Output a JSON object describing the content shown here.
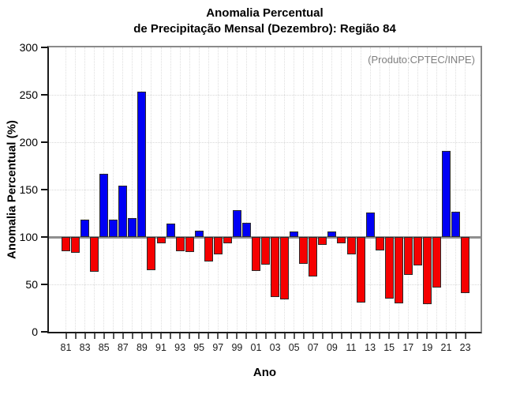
{
  "title": {
    "line1": "Anomalia Percentual",
    "line2": "de Precipitação Mensal (Dezembro): Região 84"
  },
  "watermark": "(Produto:CPTEC/INPE)",
  "axis": {
    "ylabel": "Anomalia Percentual (%)",
    "xlabel": "Ano"
  },
  "chart_data": {
    "type": "bar",
    "title": "Anomalia Percentual de Precipitação Mensal (Dezembro): Região 84",
    "xlabel": "Ano",
    "ylabel": "Anomalia Percentual (%)",
    "ylim": [
      0,
      300
    ],
    "yticks": [
      0,
      50,
      100,
      150,
      200,
      250,
      300
    ],
    "baseline": 100,
    "grid": "dotted",
    "legend": "none",
    "annotation": "(Produto:CPTEC/INPE)",
    "years": [
      1981,
      1982,
      1983,
      1984,
      1985,
      1986,
      1987,
      1988,
      1989,
      1990,
      1991,
      1992,
      1993,
      1994,
      1995,
      1996,
      1997,
      1998,
      1999,
      2000,
      2001,
      2002,
      2003,
      2004,
      2005,
      2006,
      2007,
      2008,
      2009,
      2010,
      2011,
      2012,
      2013,
      2014,
      2015,
      2016,
      2017,
      2018,
      2019,
      2020,
      2021,
      2022,
      2023
    ],
    "values": [
      85,
      83,
      118,
      63,
      167,
      118,
      154,
      120,
      253,
      65,
      93,
      114,
      85,
      84,
      107,
      74,
      82,
      93,
      128,
      115,
      64,
      71,
      37,
      34,
      106,
      72,
      58,
      92,
      106,
      93,
      82,
      31,
      126,
      86,
      35,
      30,
      60,
      70,
      29,
      47,
      191,
      127,
      41
    ],
    "x_tick_labels": [
      "81",
      "83",
      "85",
      "87",
      "89",
      "91",
      "93",
      "95",
      "97",
      "99",
      "01",
      "03",
      "05",
      "07",
      "09",
      "11",
      "13",
      "15",
      "17",
      "19",
      "21",
      "23"
    ],
    "colors": {
      "above_baseline": "#0000f5",
      "below_baseline": "#f50000",
      "bar_border": "#2b2b2b",
      "baseline_line": "#8f8f8f"
    }
  }
}
